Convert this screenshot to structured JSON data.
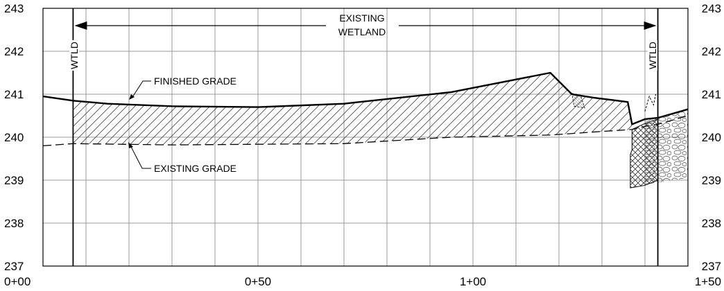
{
  "chart_data": {
    "type": "line",
    "x_ticks": [
      "0+00",
      "0+50",
      "1+00",
      "1+50"
    ],
    "y_ticks": [
      "237",
      "238",
      "239",
      "240",
      "241",
      "242",
      "243"
    ],
    "xlim": [
      0,
      150
    ],
    "ylim": [
      237,
      243
    ],
    "grid": true,
    "series": [
      {
        "name": "FINISHED GRADE",
        "style": "solid",
        "x": [
          0,
          7,
          15,
          30,
          50,
          70,
          95,
          118,
          123,
          128,
          136,
          137,
          140,
          143,
          150
        ],
        "y": [
          240.95,
          240.85,
          240.78,
          240.72,
          240.7,
          240.78,
          241.05,
          241.5,
          241.0,
          240.92,
          240.82,
          240.3,
          240.42,
          240.45,
          240.65
        ]
      },
      {
        "name": "EXISTING GRADE",
        "style": "dashed",
        "x": [
          0,
          7,
          30,
          70,
          95,
          118,
          128,
          137,
          140,
          143,
          150
        ],
        "y": [
          239.8,
          239.85,
          239.82,
          239.85,
          240.0,
          240.05,
          240.12,
          240.18,
          240.25,
          240.3,
          240.5
        ]
      }
    ],
    "wetland_limits": {
      "left_station": 7,
      "right_station": 143
    },
    "annotations": {
      "wetland": [
        "EXISTING",
        "WETLAND"
      ],
      "wtld_left": "WTLD",
      "wtld_right": "WTLD",
      "finished_grade": "FINISHED GRADE",
      "existing_grade": "EXISTING GRADE"
    }
  }
}
